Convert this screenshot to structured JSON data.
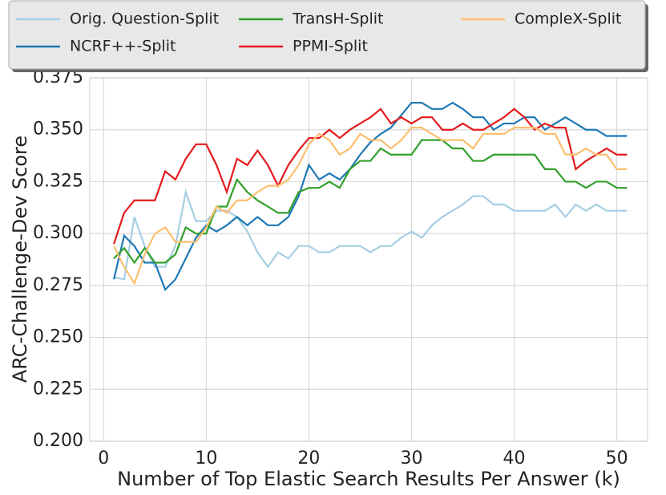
{
  "chart_data": {
    "type": "line",
    "xlabel": "Number of Top Elastic Search Results Per Answer (k)",
    "ylabel": "ARC-Challenge-Dev Score",
    "x": [
      1,
      2,
      3,
      4,
      5,
      6,
      7,
      8,
      9,
      10,
      11,
      12,
      13,
      14,
      15,
      16,
      17,
      18,
      19,
      20,
      21,
      22,
      23,
      24,
      25,
      26,
      27,
      28,
      29,
      30,
      31,
      32,
      33,
      34,
      35,
      36,
      37,
      38,
      39,
      40,
      41,
      42,
      43,
      44,
      45,
      46,
      47,
      48,
      49,
      50,
      51
    ],
    "series": [
      {
        "name": "Orig. Question-Split",
        "color": "#a6cee3",
        "values": [
          0.279,
          0.278,
          0.308,
          0.294,
          0.284,
          0.284,
          0.294,
          0.32,
          0.306,
          0.306,
          0.311,
          0.311,
          0.308,
          0.301,
          0.291,
          0.284,
          0.291,
          0.288,
          0.294,
          0.294,
          0.291,
          0.291,
          0.294,
          0.294,
          0.294,
          0.291,
          0.294,
          0.294,
          0.298,
          0.301,
          0.298,
          0.304,
          0.308,
          0.311,
          0.314,
          0.318,
          0.318,
          0.314,
          0.314,
          0.311,
          0.311,
          0.311,
          0.311,
          0.314,
          0.308,
          0.314,
          0.311,
          0.314,
          0.311,
          0.311,
          0.311
        ]
      },
      {
        "name": "NCRF++-Split",
        "color": "#1f78b4",
        "values": [
          0.278,
          0.299,
          0.294,
          0.286,
          0.286,
          0.273,
          0.278,
          0.288,
          0.298,
          0.304,
          0.301,
          0.304,
          0.308,
          0.304,
          0.308,
          0.304,
          0.304,
          0.308,
          0.318,
          0.333,
          0.326,
          0.329,
          0.326,
          0.331,
          0.338,
          0.344,
          0.348,
          0.351,
          0.357,
          0.363,
          0.363,
          0.36,
          0.36,
          0.363,
          0.36,
          0.356,
          0.356,
          0.35,
          0.353,
          0.353,
          0.356,
          0.356,
          0.35,
          0.353,
          0.356,
          0.353,
          0.35,
          0.35,
          0.347,
          0.347,
          0.347
        ]
      },
      {
        "name": "TransH-Split",
        "color": "#33a02c",
        "values": [
          0.288,
          0.293,
          0.286,
          0.293,
          0.286,
          0.286,
          0.29,
          0.303,
          0.3,
          0.3,
          0.313,
          0.313,
          0.326,
          0.32,
          0.316,
          0.313,
          0.31,
          0.31,
          0.32,
          0.322,
          0.322,
          0.325,
          0.322,
          0.331,
          0.335,
          0.335,
          0.341,
          0.338,
          0.338,
          0.338,
          0.345,
          0.345,
          0.345,
          0.341,
          0.341,
          0.335,
          0.335,
          0.338,
          0.338,
          0.338,
          0.338,
          0.338,
          0.331,
          0.331,
          0.325,
          0.325,
          0.322,
          0.325,
          0.325,
          0.322,
          0.322
        ]
      },
      {
        "name": "PPMI-Split",
        "color": "#e31a1c",
        "values": [
          0.295,
          0.31,
          0.316,
          0.316,
          0.316,
          0.33,
          0.326,
          0.336,
          0.343,
          0.343,
          0.333,
          0.32,
          0.336,
          0.333,
          0.34,
          0.333,
          0.323,
          0.333,
          0.34,
          0.346,
          0.346,
          0.35,
          0.346,
          0.35,
          0.353,
          0.356,
          0.36,
          0.353,
          0.356,
          0.353,
          0.356,
          0.356,
          0.35,
          0.35,
          0.353,
          0.35,
          0.35,
          0.353,
          0.356,
          0.36,
          0.356,
          0.35,
          0.353,
          0.351,
          0.351,
          0.331,
          0.335,
          0.338,
          0.341,
          0.338,
          0.338
        ]
      },
      {
        "name": "CompleX-Split",
        "color": "#fdbf6f",
        "values": [
          0.294,
          0.284,
          0.276,
          0.29,
          0.3,
          0.303,
          0.296,
          0.296,
          0.296,
          0.303,
          0.313,
          0.31,
          0.316,
          0.316,
          0.32,
          0.323,
          0.323,
          0.326,
          0.333,
          0.343,
          0.348,
          0.345,
          0.338,
          0.341,
          0.348,
          0.345,
          0.345,
          0.341,
          0.345,
          0.351,
          0.351,
          0.348,
          0.345,
          0.345,
          0.345,
          0.341,
          0.348,
          0.348,
          0.348,
          0.351,
          0.351,
          0.351,
          0.348,
          0.348,
          0.338,
          0.338,
          0.341,
          0.338,
          0.338,
          0.331,
          0.331
        ]
      }
    ],
    "xlim": [
      -1.35,
      53
    ],
    "ylim": [
      0.2,
      0.375
    ],
    "xticks": [
      0,
      10,
      20,
      30,
      40,
      50
    ],
    "yticks": [
      {
        "value": 0.2,
        "label": "0.200"
      },
      0.225,
      {
        "value": 0.25,
        "label": "0.250"
      },
      0.275,
      {
        "value": 0.3,
        "label": "0.300"
      },
      0.325,
      {
        "value": 0.35,
        "label": "0.350"
      },
      0.375
    ],
    "grid": true,
    "legend": "top"
  }
}
